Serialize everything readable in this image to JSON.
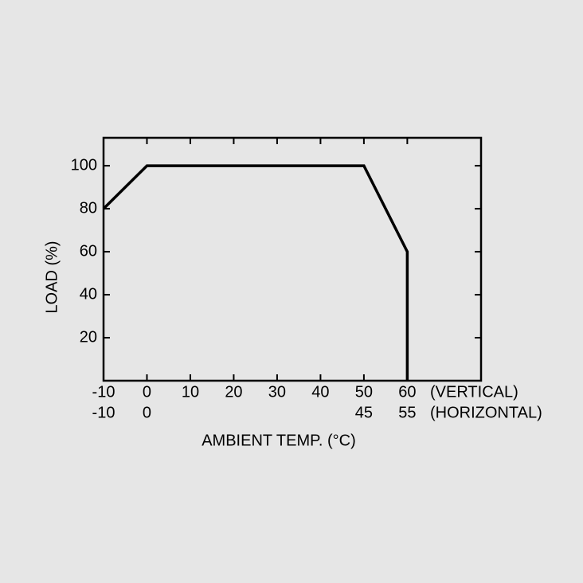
{
  "chart_data": {
    "type": "line",
    "x_label": "AMBIENT TEMP. (°C)",
    "y_label": "LOAD (%)",
    "x": [
      -10,
      0,
      50,
      60,
      60
    ],
    "series": [
      {
        "color": "#000000",
        "values": [
          80,
          100,
          100,
          60,
          0
        ]
      }
    ],
    "xlim": [
      -10,
      77
    ],
    "ylim": [
      0,
      113
    ],
    "xticks": [
      -10,
      0,
      10,
      20,
      30,
      40,
      50,
      60
    ],
    "yticks": [
      20,
      40,
      60,
      80,
      100
    ],
    "x_scale_name": "(VERTICAL)",
    "horizontal_scale": {
      "name": "(HORIZONTAL)",
      "ticks": [
        -10,
        0,
        45,
        55
      ]
    }
  }
}
